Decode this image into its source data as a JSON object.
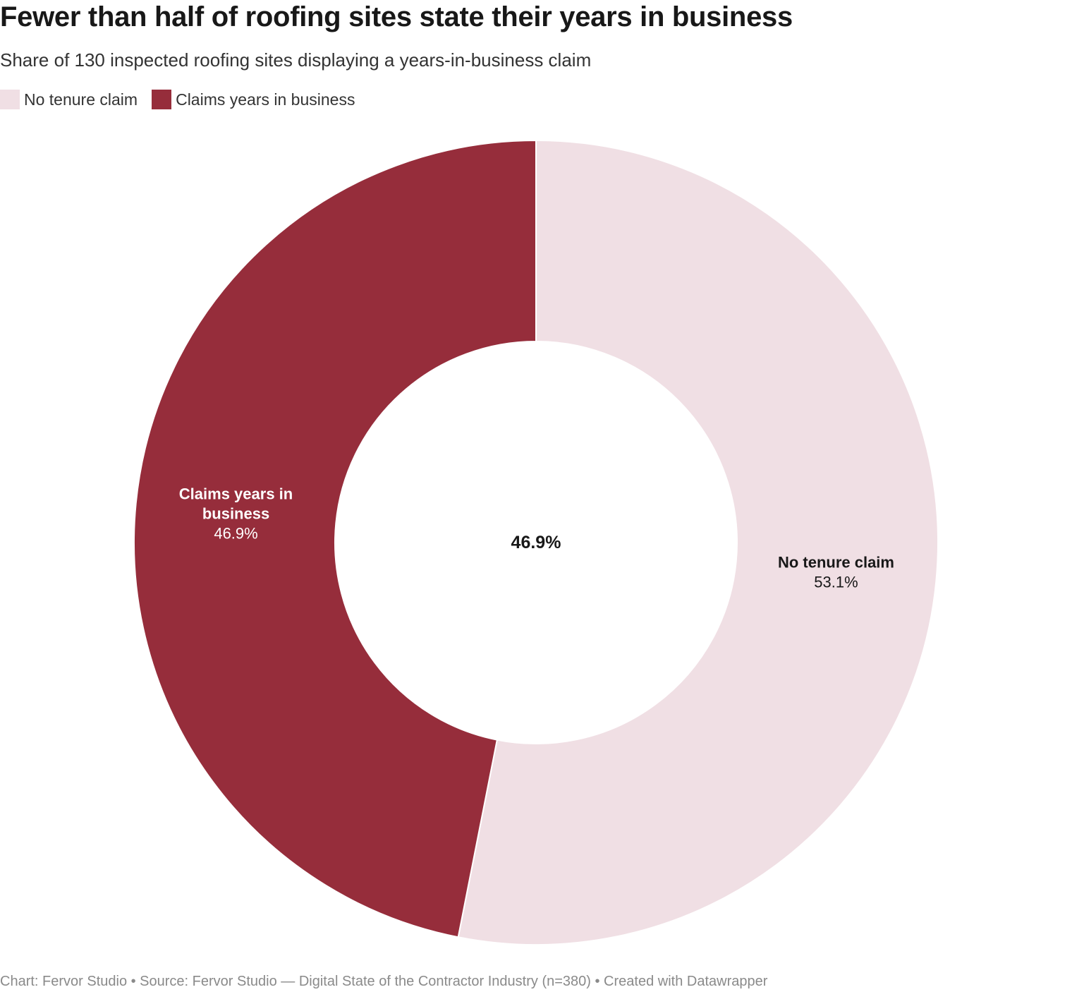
{
  "title": "Fewer than half of roofing sites state their years in business",
  "subtitle": "Share of 130 inspected roofing sites displaying a years-in-business claim",
  "legend": [
    {
      "label": "No tenure claim",
      "color": "#f0dfe4"
    },
    {
      "label": "Claims years in business",
      "color": "#962d3b"
    }
  ],
  "center_label": "46.9%",
  "footer": "Chart: Fervor Studio • Source: Fervor Studio — Digital State of the Contractor Industry (n=380) • Created with Datawrapper",
  "chart_data": {
    "type": "pie",
    "variant": "donut",
    "title": "Fewer than half of roofing sites state their years in business",
    "subtitle": "Share of 130 inspected roofing sites displaying a years-in-business claim",
    "slices": [
      {
        "label": "No tenure claim",
        "value": 53.1,
        "value_label": "53.1%",
        "color": "#f0dfe4",
        "text_color": "#181818"
      },
      {
        "label": "Claims years in business",
        "value": 46.9,
        "value_label": "46.9%",
        "color": "#962d3b",
        "text_color": "#ffffff"
      }
    ],
    "legend_position": "top-left",
    "center_label": "46.9%"
  }
}
